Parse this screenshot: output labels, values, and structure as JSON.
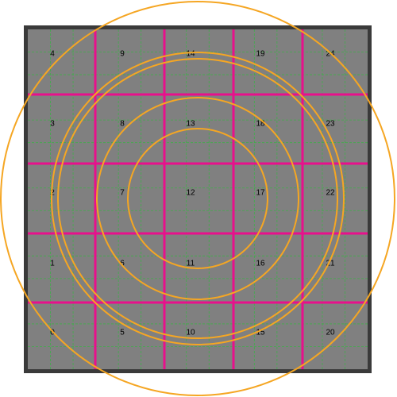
{
  "colors": {
    "background": "#ffffff",
    "frame": "#3a3a3a",
    "cell_fill": "#808080",
    "major_grid": "#e8108c",
    "minor_grid": "#3fae49",
    "circles": "#f5a623",
    "label": "#000000"
  },
  "grid": {
    "columns": 5,
    "rows": 5,
    "minor_subdivisions": 3
  },
  "cells": [
    {
      "id": "0",
      "col": 0,
      "row": 0
    },
    {
      "id": "1",
      "col": 0,
      "row": 1
    },
    {
      "id": "2",
      "col": 0,
      "row": 2
    },
    {
      "id": "3",
      "col": 0,
      "row": 3
    },
    {
      "id": "4",
      "col": 0,
      "row": 4
    },
    {
      "id": "5",
      "col": 1,
      "row": 0
    },
    {
      "id": "6",
      "col": 1,
      "row": 1
    },
    {
      "id": "7",
      "col": 1,
      "row": 2
    },
    {
      "id": "8",
      "col": 1,
      "row": 3
    },
    {
      "id": "9",
      "col": 1,
      "row": 4
    },
    {
      "id": "10",
      "col": 2,
      "row": 0
    },
    {
      "id": "11",
      "col": 2,
      "row": 1
    },
    {
      "id": "12",
      "col": 2,
      "row": 2
    },
    {
      "id": "13",
      "col": 2,
      "row": 3
    },
    {
      "id": "14",
      "col": 2,
      "row": 4
    },
    {
      "id": "15",
      "col": 3,
      "row": 0
    },
    {
      "id": "16",
      "col": 3,
      "row": 1
    },
    {
      "id": "17",
      "col": 3,
      "row": 2
    },
    {
      "id": "18",
      "col": 3,
      "row": 3
    },
    {
      "id": "19",
      "col": 3,
      "row": 4
    },
    {
      "id": "20",
      "col": 4,
      "row": 0
    },
    {
      "id": "21",
      "col": 4,
      "row": 1
    },
    {
      "id": "22",
      "col": 4,
      "row": 2
    },
    {
      "id": "23",
      "col": 4,
      "row": 3
    },
    {
      "id": "24",
      "col": 4,
      "row": 4
    }
  ],
  "circle_count": 5
}
